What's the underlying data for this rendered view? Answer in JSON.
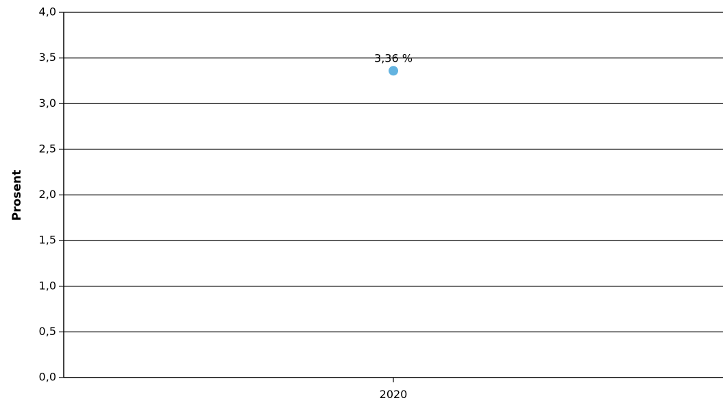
{
  "chart_data": {
    "type": "scatter",
    "title": "",
    "xlabel": "",
    "ylabel": "Prosent",
    "ylim": [
      0,
      4
    ],
    "y_ticks": [
      "0,0",
      "0,5",
      "1,0",
      "1,5",
      "2,0",
      "2,5",
      "3,0",
      "3,5",
      "4,0"
    ],
    "categories": [
      "2020"
    ],
    "series": [
      {
        "values": [
          3.36
        ],
        "data_labels": [
          "3,36 %"
        ],
        "color": "#63b3e0"
      }
    ],
    "grid": true,
    "legend": "none"
  }
}
